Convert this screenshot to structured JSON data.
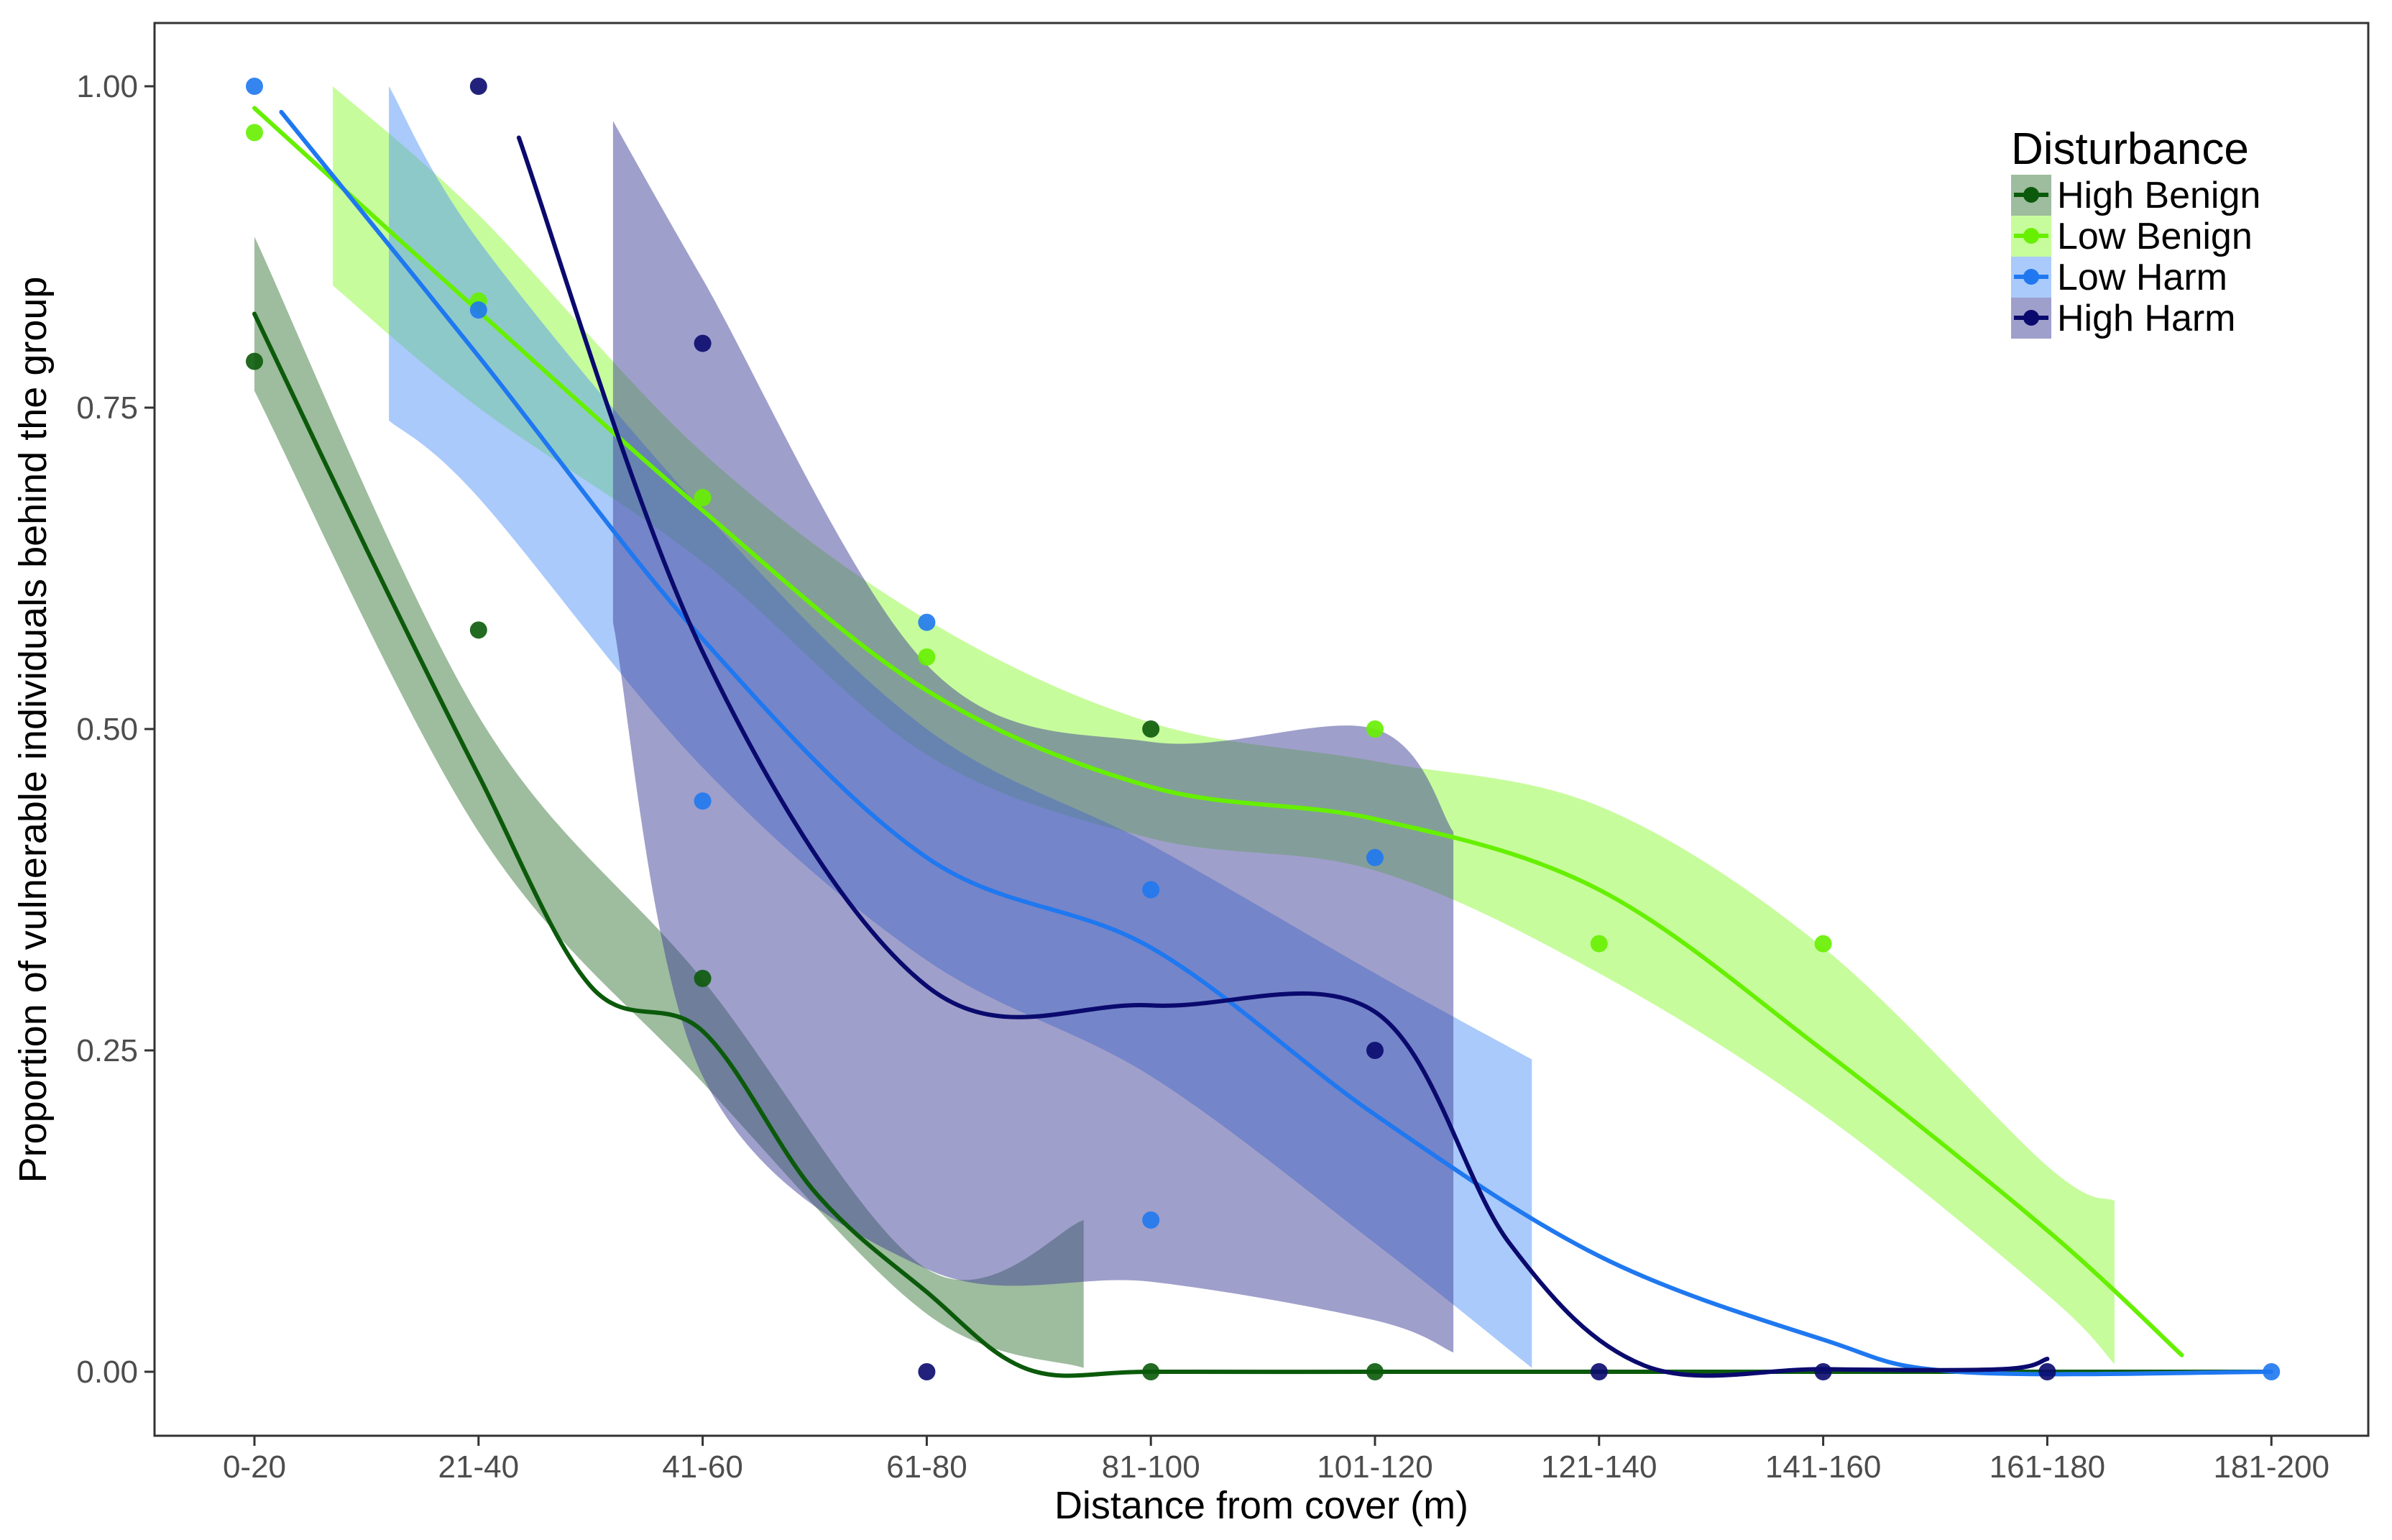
{
  "chart_data": {
    "type": "scatter",
    "title": "",
    "xlabel": "Distance from cover (m)",
    "ylabel": "Proportion of vulnerable individuals behind the group",
    "categories": [
      "0-20",
      "21-40",
      "41-60",
      "61-80",
      "81-100",
      "101-120",
      "121-140",
      "141-160",
      "161-180",
      "181-200"
    ],
    "ylim": [
      -0.06,
      1.05
    ],
    "y_ticks": [
      0,
      0.25,
      0.5,
      0.75,
      1
    ],
    "y_tick_labels": [
      "0.00",
      "0.25",
      "0.50",
      "0.75",
      "1.00"
    ],
    "grid": false,
    "legend_title": "Disturbance",
    "legend_position": "top-right",
    "series": [
      {
        "name": "High Benign",
        "color": "#0b5a0b",
        "band_color": "#3d7a3d",
        "points": [
          [
            1,
            0.786
          ],
          [
            2,
            0.577
          ],
          [
            3,
            0.306
          ],
          [
            5,
            0.5
          ],
          [
            5,
            0
          ],
          [
            6,
            0
          ]
        ],
        "smooth": [
          [
            1,
            0.823
          ],
          [
            1.5,
            0.64
          ],
          [
            2,
            0.464
          ],
          [
            2.5,
            0.3
          ],
          [
            3,
            0.265
          ],
          [
            3.5,
            0.14
          ],
          [
            4,
            0.062
          ],
          [
            4.45,
            0.002
          ],
          [
            5,
            0
          ],
          [
            6,
            0
          ],
          [
            7,
            0
          ],
          [
            8,
            0
          ],
          [
            9,
            0
          ],
          [
            10,
            0
          ]
        ],
        "band": [
          [
            1,
            0.763,
            0.883
          ],
          [
            2,
            0.42,
            0.51
          ],
          [
            3,
            0.225,
            0.305
          ],
          [
            4,
            0.045,
            0.08
          ],
          [
            4.7,
            0.003,
            0.118
          ]
        ]
      },
      {
        "name": "Low Benign",
        "color": "#66f000",
        "band_color": "#8ffa3a",
        "points": [
          [
            1,
            0.964
          ],
          [
            2,
            0.833
          ],
          [
            3,
            0.68
          ],
          [
            4,
            0.556
          ],
          [
            6,
            0.5
          ],
          [
            7,
            0.333
          ],
          [
            8,
            0.333
          ]
        ],
        "smooth": [
          [
            1,
            0.983
          ],
          [
            2,
            0.825
          ],
          [
            3,
            0.67
          ],
          [
            4,
            0.53
          ],
          [
            5,
            0.455
          ],
          [
            6,
            0.43
          ],
          [
            7,
            0.375
          ],
          [
            8,
            0.25
          ],
          [
            9,
            0.11
          ],
          [
            9.6,
            0.013
          ]
        ],
        "band": [
          [
            1.35,
            0.845,
            1
          ],
          [
            2,
            0.75,
            0.9
          ],
          [
            3,
            0.63,
            0.715
          ],
          [
            4,
            0.48,
            0.585
          ],
          [
            5,
            0.415,
            0.505
          ],
          [
            6,
            0.39,
            0.475
          ],
          [
            7,
            0.31,
            0.44
          ],
          [
            8,
            0.2,
            0.33
          ],
          [
            9,
            0.06,
            0.16
          ],
          [
            9.3,
            0.006,
            0.133
          ]
        ]
      },
      {
        "name": "Low Harm",
        "color": "#1f78f0",
        "band_color": "#5595f7",
        "points": [
          [
            1,
            1
          ],
          [
            2,
            0.826
          ],
          [
            3,
            0.444
          ],
          [
            4,
            0.583
          ],
          [
            5,
            0.375
          ],
          [
            5,
            0.118
          ],
          [
            6,
            0.4
          ],
          [
            10,
            0
          ]
        ],
        "smooth": [
          [
            1.12,
            0.98
          ],
          [
            2,
            0.79
          ],
          [
            3,
            0.57
          ],
          [
            4,
            0.4
          ],
          [
            5,
            0.33
          ],
          [
            6,
            0.2
          ],
          [
            7,
            0.09
          ],
          [
            8,
            0.025
          ],
          [
            8.6,
            0
          ],
          [
            10,
            0
          ]
        ],
        "band": [
          [
            1.6,
            0.74,
            1
          ],
          [
            2,
            0.68,
            0.88
          ],
          [
            3,
            0.47,
            0.67
          ],
          [
            4,
            0.32,
            0.5
          ],
          [
            5,
            0.23,
            0.41
          ],
          [
            6,
            0.1,
            0.31
          ],
          [
            6.7,
            0.003,
            0.243
          ]
        ]
      },
      {
        "name": "High Harm",
        "color": "#0a0a6e",
        "band_color": "#3f3f98",
        "points": [
          [
            2,
            1
          ],
          [
            3,
            0.8
          ],
          [
            4,
            0
          ],
          [
            6,
            0.25
          ],
          [
            7,
            0
          ],
          [
            8,
            0
          ],
          [
            9,
            0
          ]
        ],
        "smooth": [
          [
            2.18,
            0.96
          ],
          [
            3,
            0.56
          ],
          [
            4,
            0.3
          ],
          [
            5,
            0.285
          ],
          [
            6,
            0.28
          ],
          [
            6.6,
            0.1
          ],
          [
            7.2,
            0.005
          ],
          [
            8,
            0.002
          ],
          [
            8.8,
            0.002
          ],
          [
            9,
            0.01
          ]
        ],
        "band": [
          [
            2.6,
            0.583,
            0.973
          ],
          [
            3,
            0.23,
            0.85
          ],
          [
            4,
            0.08,
            0.55
          ],
          [
            5,
            0.07,
            0.49
          ],
          [
            6,
            0.04,
            0.5
          ],
          [
            6.35,
            0.015,
            0.42
          ]
        ]
      }
    ]
  }
}
